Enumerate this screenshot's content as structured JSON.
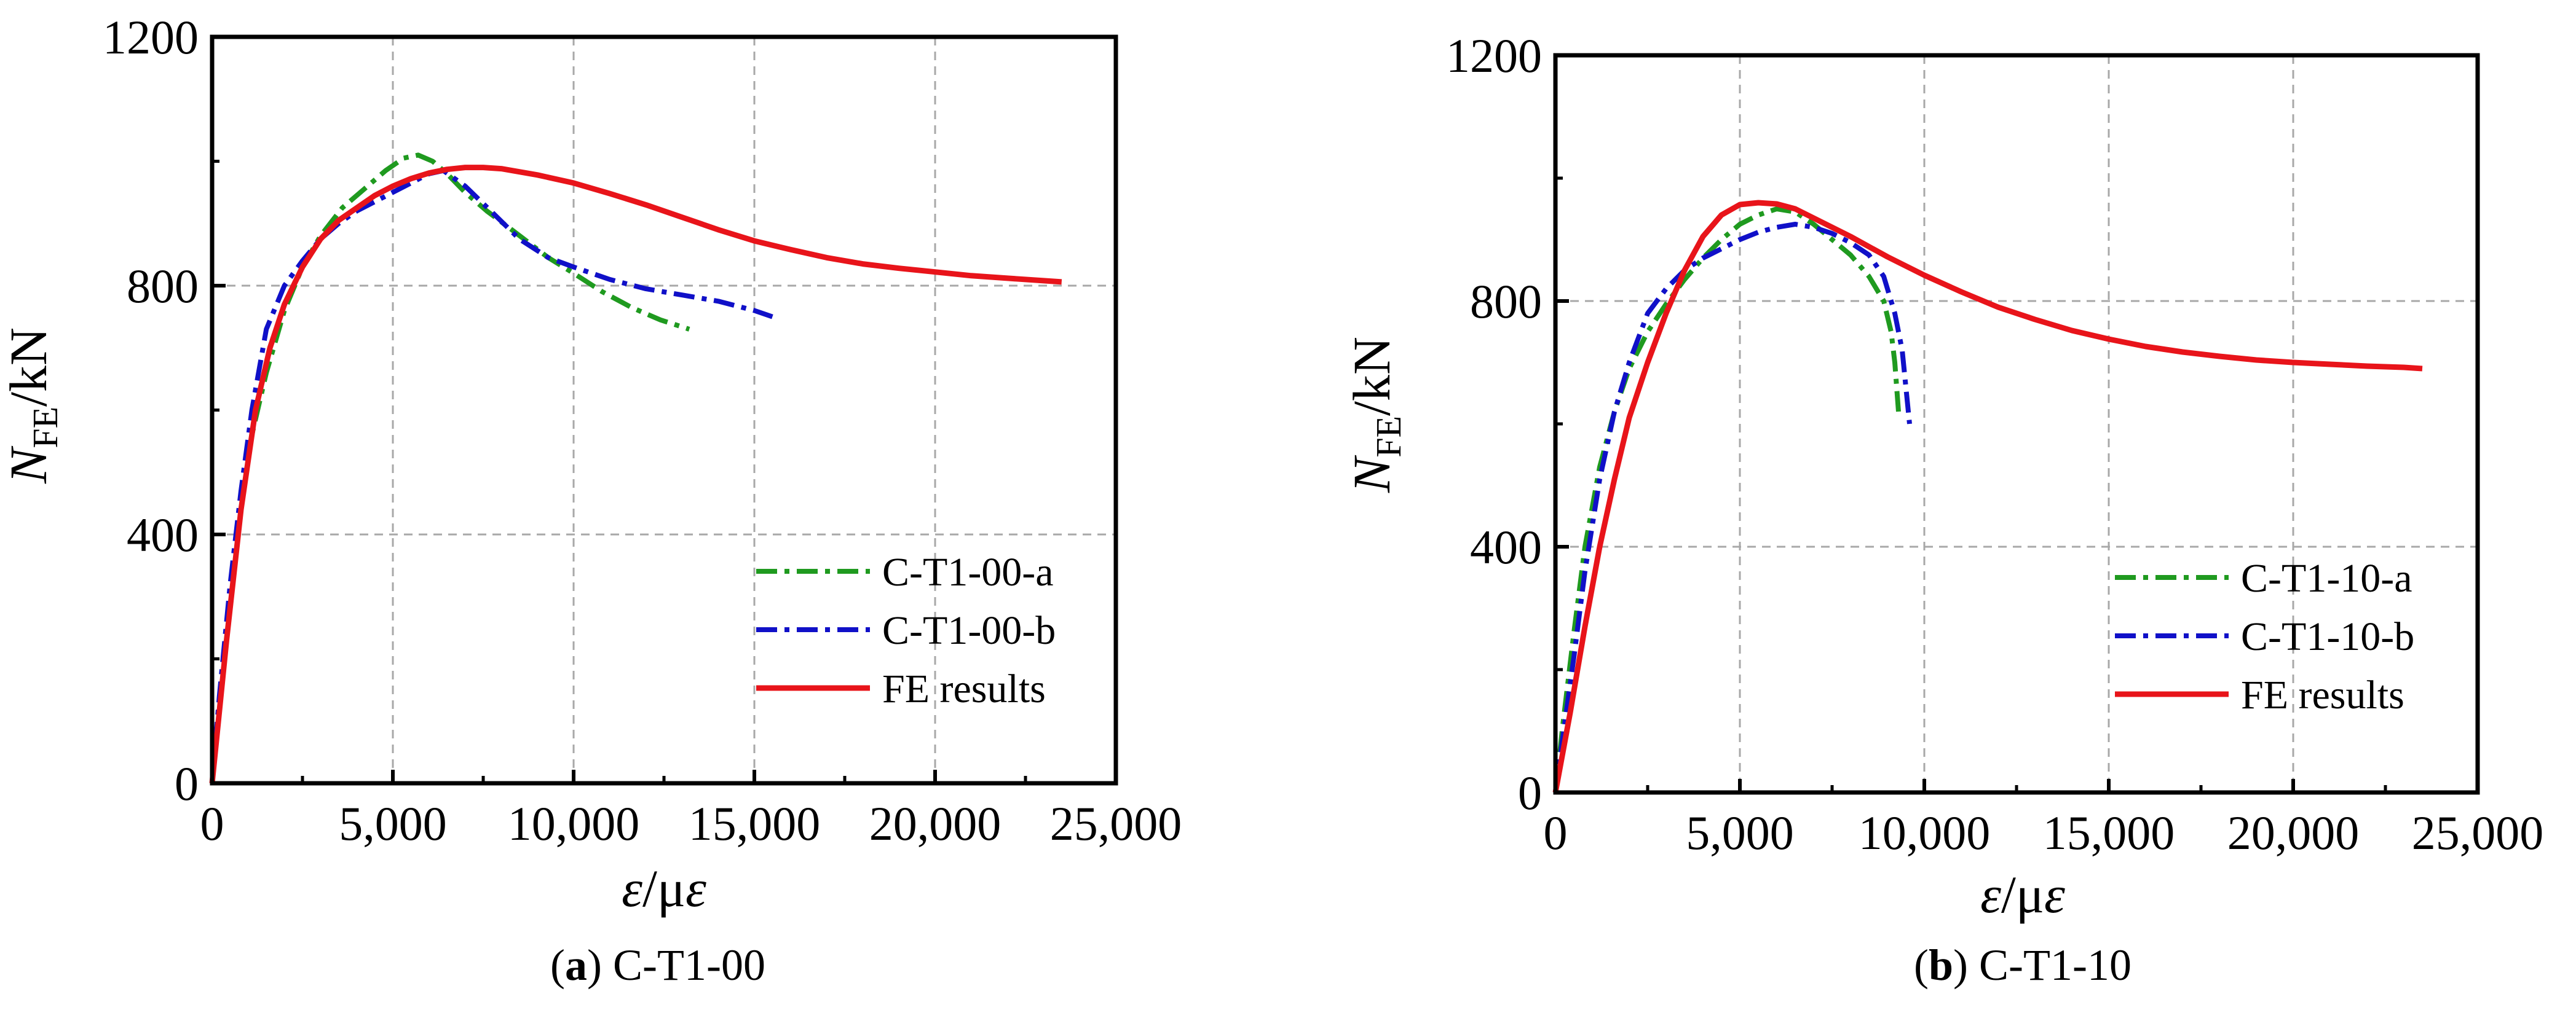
{
  "chart_data": [
    {
      "type": "line",
      "caption_letter": "a",
      "caption_rest": ") C-T1-00",
      "ylabel_main": "N",
      "ylabel_sub": "FE",
      "ylabel_unit": "/kN",
      "xlabel_main": "ε",
      "xlabel_unit": "/με",
      "xlim": [
        0,
        25000
      ],
      "ylim": [
        0,
        1200
      ],
      "grid": true,
      "legend_position": "bottom-right",
      "xticks": [
        0,
        5000,
        10000,
        15000,
        20000,
        25000
      ],
      "xtick_labels": [
        "0",
        "5,000",
        "10,000",
        "15,000",
        "20,000",
        "25,000"
      ],
      "yticks": [
        0,
        400,
        800,
        1200
      ],
      "ytick_labels": [
        "0",
        "400",
        "800",
        "1200"
      ],
      "series": [
        {
          "name": "C-T1-00-a",
          "color": "#1f9a1f",
          "dash": "dashdot",
          "x": [
            0,
            200,
            500,
            800,
            1100,
            1500,
            2000,
            2500,
            3000,
            3600,
            4200,
            4800,
            5300,
            5700,
            6100,
            6500,
            7000,
            7600,
            8400,
            9300,
            10000,
            10800,
            11600,
            12400,
            13200
          ],
          "y": [
            0,
            130,
            300,
            440,
            560,
            660,
            760,
            830,
            880,
            925,
            955,
            985,
            1005,
            1010,
            1000,
            980,
            950,
            920,
            885,
            845,
            820,
            790,
            765,
            745,
            730
          ]
        },
        {
          "name": "C-T1-00-b",
          "color": "#1010c8",
          "dash": "dashdot",
          "x": [
            0,
            200,
            500,
            800,
            1100,
            1500,
            2000,
            2500,
            3000,
            3500,
            4000,
            4500,
            5000,
            5500,
            6000,
            6400,
            7000,
            7800,
            8500,
            9300,
            10000,
            11000,
            12000,
            13000,
            14000,
            15000,
            15500
          ],
          "y": [
            0,
            140,
            320,
            470,
            600,
            730,
            800,
            840,
            875,
            900,
            920,
            935,
            950,
            965,
            980,
            985,
            960,
            915,
            875,
            845,
            830,
            810,
            795,
            785,
            775,
            760,
            750
          ]
        },
        {
          "name": "FE results",
          "color": "#e8141a",
          "dash": "solid",
          "x": [
            0,
            400,
            800,
            1200,
            1600,
            2000,
            2500,
            3000,
            3500,
            4000,
            4500,
            5000,
            5500,
            6000,
            6500,
            7000,
            7500,
            8000,
            9000,
            10000,
            11000,
            12000,
            13000,
            14000,
            15000,
            16000,
            17000,
            18000,
            19000,
            20000,
            21000,
            22000,
            23000,
            23500
          ],
          "y": [
            0,
            230,
            440,
            600,
            700,
            770,
            830,
            875,
            905,
            925,
            945,
            960,
            972,
            981,
            987,
            990,
            990,
            988,
            978,
            965,
            948,
            930,
            910,
            890,
            872,
            858,
            845,
            835,
            828,
            822,
            816,
            812,
            808,
            806
          ]
        }
      ]
    },
    {
      "type": "line",
      "caption_letter": "b",
      "caption_rest": ") C-T1-10",
      "ylabel_main": "N",
      "ylabel_sub": "FE",
      "ylabel_unit": "/kN",
      "xlabel_main": "ε",
      "xlabel_unit": "/με",
      "xlim": [
        0,
        25000
      ],
      "ylim": [
        0,
        1200
      ],
      "grid": true,
      "legend_position": "bottom-right",
      "xticks": [
        0,
        5000,
        10000,
        15000,
        20000,
        25000
      ],
      "xtick_labels": [
        "0",
        "5,000",
        "10,000",
        "15,000",
        "20,000",
        "25,000"
      ],
      "yticks": [
        0,
        400,
        800,
        1200
      ],
      "ytick_labels": [
        "0",
        "400",
        "800",
        "1200"
      ],
      "series": [
        {
          "name": "C-T1-10-a",
          "color": "#1f9a1f",
          "dash": "dashdot",
          "x": [
            0,
            200,
            500,
            800,
            1200,
            1600,
            2000,
            2500,
            3000,
            3500,
            4000,
            4500,
            5000,
            5500,
            6000,
            6500,
            7000,
            7500,
            8000,
            8500,
            8900,
            9100,
            9200,
            9300
          ],
          "y": [
            0,
            110,
            260,
            400,
            530,
            620,
            690,
            750,
            795,
            835,
            870,
            900,
            925,
            940,
            950,
            945,
            925,
            900,
            875,
            840,
            800,
            750,
            700,
            620
          ]
        },
        {
          "name": "C-T1-10-b",
          "color": "#1010c8",
          "dash": "dashdot",
          "x": [
            0,
            200,
            500,
            800,
            1200,
            1600,
            2000,
            2500,
            3000,
            3500,
            4000,
            4500,
            5000,
            5500,
            6000,
            6500,
            7000,
            7500,
            8000,
            8500,
            8900,
            9200,
            9400,
            9500,
            9600
          ],
          "y": [
            0,
            90,
            220,
            360,
            510,
            620,
            700,
            780,
            820,
            850,
            870,
            885,
            900,
            912,
            920,
            925,
            920,
            910,
            895,
            875,
            840,
            780,
            720,
            660,
            600
          ]
        },
        {
          "name": "FE results",
          "color": "#e8141a",
          "dash": "solid",
          "x": [
            0,
            400,
            800,
            1200,
            1600,
            2000,
            2500,
            3000,
            3500,
            4000,
            4500,
            5000,
            5500,
            6000,
            6500,
            7000,
            8000,
            9000,
            10000,
            11000,
            12000,
            13000,
            14000,
            15000,
            16000,
            17000,
            18000,
            19000,
            20000,
            21000,
            22000,
            23000,
            23500
          ],
          "y": [
            0,
            130,
            270,
            400,
            510,
            610,
            700,
            780,
            850,
            905,
            940,
            957,
            960,
            958,
            950,
            935,
            905,
            872,
            842,
            815,
            790,
            770,
            752,
            738,
            726,
            717,
            710,
            704,
            700,
            697,
            694,
            692,
            690
          ]
        }
      ]
    }
  ]
}
